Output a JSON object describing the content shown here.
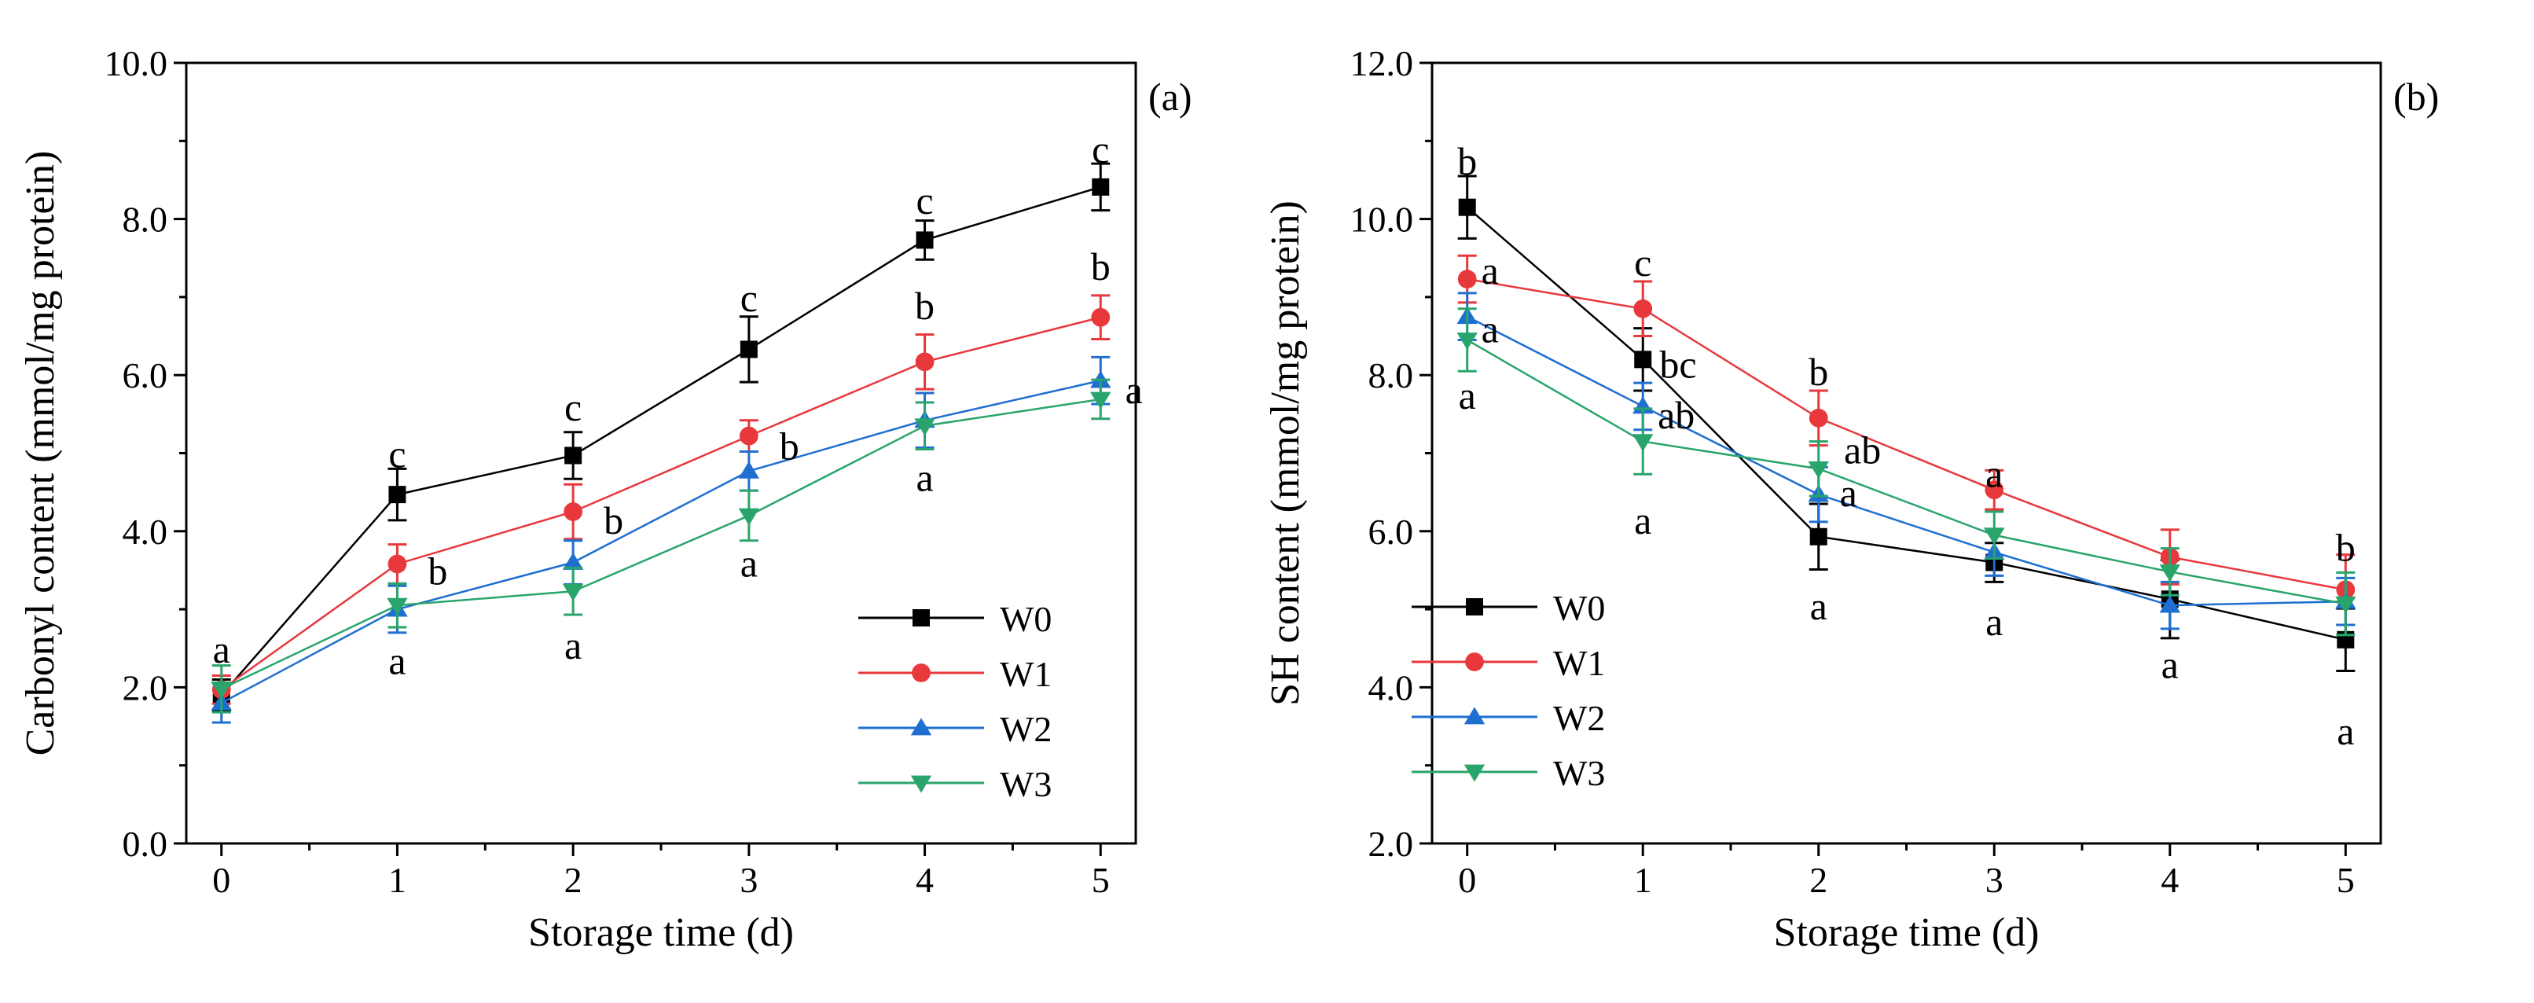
{
  "colors": {
    "W0": "#000000",
    "W1": "#e8383c",
    "W2": "#1f6fd1",
    "W3": "#29a56b",
    "axis": "#000000"
  },
  "chart_data": [
    {
      "type": "line",
      "panel_label": "(a)",
      "xlabel": "Storage time (d)",
      "ylabel": "Carbonyl content (mmol/mg protein)",
      "x": [
        0,
        1,
        2,
        3,
        4,
        5
      ],
      "xticks": [
        "0",
        "1",
        "2",
        "3",
        "4",
        "5"
      ],
      "xlim": [
        -0.2,
        5.2
      ],
      "ylim": [
        0,
        10
      ],
      "yticks": [
        "0.0",
        "2.0",
        "4.0",
        "6.0",
        "8.0",
        "10.0"
      ],
      "legend_position": "bottom-right",
      "series": [
        {
          "name": "W0",
          "marker": "square",
          "values": [
            1.9,
            4.47,
            4.97,
            6.33,
            7.73,
            8.41
          ],
          "errors": [
            0.2,
            0.33,
            0.3,
            0.42,
            0.25,
            0.3
          ],
          "letters": [
            {
              "text": "a",
              "x": 0,
              "y": 2.5
            },
            {
              "text": "c",
              "x": 1,
              "y": 5.0
            },
            {
              "text": "c",
              "x": 2,
              "y": 5.6
            },
            {
              "text": "c",
              "x": 3,
              "y": 7.0
            },
            {
              "text": "c",
              "x": 4,
              "y": 8.25
            },
            {
              "text": "c",
              "x": 5,
              "y": 8.9
            }
          ]
        },
        {
          "name": "W1",
          "marker": "circle",
          "values": [
            1.97,
            3.58,
            4.25,
            5.22,
            6.17,
            6.74
          ],
          "errors": [
            0.18,
            0.25,
            0.35,
            0.2,
            0.35,
            0.28
          ],
          "letters": [
            {
              "text": "b",
              "x": 1.23,
              "y": 3.5
            },
            {
              "text": "b",
              "x": 2.23,
              "y": 4.15
            },
            {
              "text": "b",
              "x": 3.23,
              "y": 5.1
            },
            {
              "text": "b",
              "x": 4,
              "y": 6.9
            },
            {
              "text": "b",
              "x": 5,
              "y": 7.4
            }
          ]
        },
        {
          "name": "W2",
          "marker": "triangle-up",
          "values": [
            1.8,
            3.0,
            3.6,
            4.77,
            5.42,
            5.93
          ],
          "errors": [
            0.25,
            0.3,
            0.28,
            0.25,
            0.35,
            0.3
          ],
          "letters": [
            {
              "text": "a",
              "x": 5.19,
              "y": 5.82
            }
          ]
        },
        {
          "name": "W3",
          "marker": "triangle-down",
          "values": [
            1.98,
            3.05,
            3.23,
            4.2,
            5.35,
            5.69
          ],
          "errors": [
            0.3,
            0.28,
            0.3,
            0.32,
            0.3,
            0.25
          ],
          "letters": [
            {
              "text": "a",
              "x": 1,
              "y": 2.35
            },
            {
              "text": "a",
              "x": 2,
              "y": 2.55
            },
            {
              "text": "a",
              "x": 3,
              "y": 3.6
            },
            {
              "text": "a",
              "x": 4,
              "y": 4.7
            }
          ]
        }
      ]
    },
    {
      "type": "line",
      "panel_label": "(b)",
      "xlabel": "Storage time (d)",
      "ylabel": "SH content (mmol/mg protein)",
      "x": [
        0,
        1,
        2,
        3,
        4,
        5
      ],
      "xticks": [
        "0",
        "1",
        "2",
        "3",
        "4",
        "5"
      ],
      "xlim": [
        -0.2,
        5.2
      ],
      "ylim": [
        2,
        12
      ],
      "yticks": [
        "2.0",
        "4.0",
        "6.0",
        "8.0",
        "10.0",
        "12.0"
      ],
      "legend_position": "bottom-left",
      "series": [
        {
          "name": "W0",
          "marker": "square",
          "values": [
            10.15,
            8.2,
            5.93,
            5.6,
            5.13,
            4.61
          ],
          "errors": [
            0.4,
            0.4,
            0.42,
            0.25,
            0.5,
            0.4
          ],
          "letters": [
            {
              "text": "b",
              "x": 0,
              "y": 10.75
            },
            {
              "text": "a",
              "x": 2,
              "y": 5.05
            },
            {
              "text": "a",
              "x": 5,
              "y": 3.45
            }
          ]
        },
        {
          "name": "W1",
          "marker": "circle",
          "values": [
            9.23,
            8.85,
            7.45,
            6.53,
            5.67,
            5.25
          ],
          "errors": [
            0.3,
            0.35,
            0.35,
            0.25,
            0.35,
            0.45
          ],
          "letters": [
            {
              "text": "a",
              "x": 0.13,
              "y": 9.35
            },
            {
              "text": "c",
              "x": 1,
              "y": 9.45
            },
            {
              "text": "b",
              "x": 2,
              "y": 8.05
            },
            {
              "text": "a",
              "x": 3,
              "y": 6.75
            },
            {
              "text": "b",
              "x": 5,
              "y": 5.8
            }
          ]
        },
        {
          "name": "W2",
          "marker": "triangle-up",
          "values": [
            8.75,
            7.6,
            6.47,
            5.73,
            5.05,
            5.1
          ],
          "errors": [
            0.3,
            0.3,
            0.35,
            0.3,
            0.3,
            0.3
          ],
          "letters": [
            {
              "text": "a",
              "x": 0.13,
              "y": 8.6
            },
            {
              "text": "ab",
              "x": 1.19,
              "y": 7.5
            },
            {
              "text": "a",
              "x": 2.17,
              "y": 6.5
            },
            {
              "text": "a",
              "x": 3,
              "y": 4.85
            },
            {
              "text": "a",
              "x": 4,
              "y": 4.3
            }
          ]
        },
        {
          "name": "W3",
          "marker": "triangle-down",
          "values": [
            8.45,
            7.15,
            6.8,
            5.95,
            5.48,
            5.07
          ],
          "errors": [
            0.4,
            0.42,
            0.35,
            0.3,
            0.3,
            0.4
          ],
          "letters": [
            {
              "text": "a",
              "x": 0,
              "y": 7.75
            },
            {
              "text": "bc",
              "x": 1.2,
              "y": 8.15
            },
            {
              "text": "a",
              "x": 1,
              "y": 6.15
            },
            {
              "text": "ab",
              "x": 2.25,
              "y": 7.05
            }
          ]
        }
      ]
    }
  ]
}
